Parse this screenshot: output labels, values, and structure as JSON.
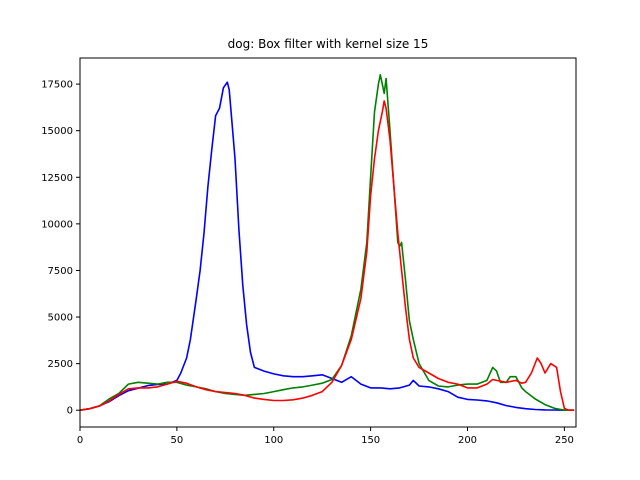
{
  "chart_data": {
    "type": "line",
    "title": "dog: Box filter with kernel size 15",
    "xlabel": "",
    "ylabel": "",
    "xlim": [
      0,
      256
    ],
    "ylim": [
      -900,
      18900
    ],
    "xticks": [
      0,
      50,
      100,
      150,
      200,
      250
    ],
    "yticks": [
      0,
      2500,
      5000,
      7500,
      10000,
      12500,
      15000,
      17500
    ],
    "grid": false,
    "legend": "none",
    "series": [
      {
        "color": "#0000ff",
        "x": [
          0,
          5,
          10,
          15,
          20,
          25,
          30,
          35,
          40,
          45,
          50,
          52,
          55,
          57,
          60,
          62,
          64,
          66,
          68,
          70,
          72,
          74,
          76,
          77,
          78,
          80,
          82,
          84,
          86,
          88,
          90,
          95,
          100,
          105,
          110,
          115,
          120,
          125,
          130,
          135,
          140,
          145,
          150,
          155,
          160,
          165,
          170,
          172,
          175,
          180,
          185,
          190,
          195,
          200,
          205,
          210,
          215,
          220,
          225,
          230,
          235,
          240,
          245,
          250,
          255
        ],
        "y": [
          0,
          80,
          230,
          460,
          780,
          1050,
          1180,
          1320,
          1380,
          1400,
          1600,
          2000,
          2800,
          3800,
          6000,
          7500,
          9500,
          12000,
          14000,
          15800,
          16200,
          17300,
          17600,
          17200,
          16000,
          13500,
          9700,
          6700,
          4600,
          3100,
          2300,
          2100,
          1950,
          1850,
          1800,
          1800,
          1850,
          1900,
          1700,
          1500,
          1800,
          1400,
          1200,
          1200,
          1150,
          1200,
          1350,
          1600,
          1300,
          1250,
          1150,
          1000,
          700,
          580,
          550,
          500,
          400,
          250,
          150,
          80,
          40,
          20,
          10,
          0,
          0
        ]
      },
      {
        "color": "#008000",
        "x": [
          0,
          5,
          10,
          15,
          20,
          25,
          30,
          35,
          40,
          45,
          50,
          55,
          60,
          65,
          70,
          75,
          80,
          85,
          90,
          95,
          100,
          105,
          110,
          115,
          120,
          125,
          130,
          135,
          140,
          145,
          148,
          150,
          152,
          154,
          155,
          156,
          157,
          158,
          160,
          162,
          164,
          165,
          166,
          168,
          170,
          172,
          175,
          180,
          185,
          190,
          195,
          200,
          205,
          210,
          213,
          215,
          217,
          220,
          222,
          225,
          228,
          230,
          235,
          240,
          245,
          250,
          255
        ],
        "y": [
          0,
          80,
          230,
          600,
          900,
          1400,
          1500,
          1450,
          1400,
          1500,
          1500,
          1350,
          1250,
          1150,
          1000,
          900,
          850,
          800,
          850,
          900,
          1000,
          1100,
          1200,
          1250,
          1350,
          1450,
          1650,
          2400,
          4000,
          6500,
          9000,
          12500,
          16000,
          17500,
          18000,
          17500,
          17000,
          17800,
          15000,
          12000,
          9000,
          8800,
          9000,
          7000,
          4800,
          3800,
          2500,
          1600,
          1300,
          1250,
          1350,
          1400,
          1400,
          1600,
          2300,
          2100,
          1500,
          1500,
          1800,
          1800,
          1200,
          1000,
          600,
          300,
          100,
          0,
          0
        ]
      },
      {
        "color": "#ff0000",
        "x": [
          0,
          5,
          10,
          15,
          20,
          25,
          30,
          35,
          40,
          45,
          50,
          55,
          60,
          65,
          70,
          75,
          80,
          85,
          90,
          95,
          100,
          105,
          110,
          115,
          120,
          125,
          130,
          135,
          140,
          145,
          148,
          150,
          152,
          154,
          156,
          157,
          158,
          160,
          162,
          164,
          166,
          168,
          170,
          172,
          175,
          180,
          185,
          190,
          195,
          200,
          205,
          210,
          213,
          215,
          220,
          225,
          228,
          230,
          233,
          236,
          238,
          240,
          243,
          246,
          248,
          250,
          252,
          255
        ],
        "y": [
          0,
          80,
          220,
          500,
          850,
          1150,
          1200,
          1200,
          1250,
          1400,
          1550,
          1450,
          1250,
          1100,
          1000,
          950,
          900,
          800,
          650,
          580,
          520,
          520,
          560,
          650,
          800,
          1000,
          1500,
          2400,
          3800,
          6000,
          8500,
          11500,
          13500,
          15000,
          16000,
          16600,
          16200,
          14500,
          12000,
          9500,
          7500,
          5500,
          3800,
          2800,
          2300,
          2000,
          1700,
          1500,
          1400,
          1200,
          1200,
          1400,
          1650,
          1600,
          1500,
          1600,
          1450,
          1500,
          2000,
          2800,
          2500,
          2000,
          2500,
          2300,
          1000,
          100,
          0,
          0
        ]
      }
    ]
  }
}
